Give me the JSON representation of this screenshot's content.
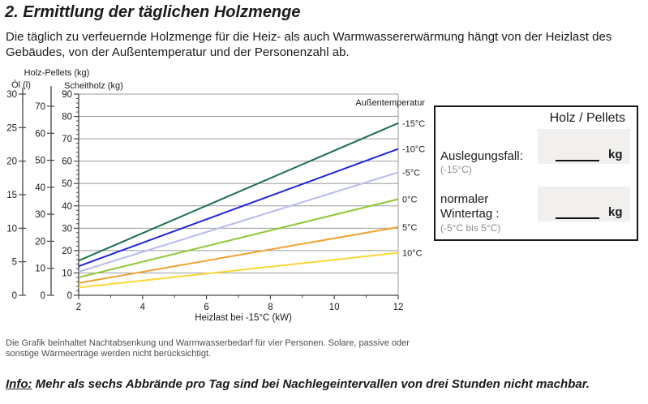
{
  "doc": {
    "title": "2. Ermittlung der täglichen Holzmenge",
    "intro": "Die täglich zu verfeuernde Holzmenge für die Heiz- als auch Warmwassererwärmung hängt von der Heizlast des Gebäudes, von der Außentemperatur und der Personenzahl ab.",
    "footnote": "Die Grafik beinhaltet Nachtabsenkung und Warmwasserbedarf für vier Personen. Solare, passive oder sonstige Wärmeerträge werden nicht berücksichtigt.",
    "info_label": "Info:",
    "info_text": "Mehr als sechs Abbrände pro Tag sind bei Nachlegeintervallen von drei Stunden nicht machbar."
  },
  "worksheet": {
    "header": "Holz / Pellets",
    "rows": [
      {
        "label_line1": "Auslegungsfall:",
        "label_line2": "",
        "sublabel": "(-15°C)",
        "value": "",
        "unit": "kg"
      },
      {
        "label_line1": "normaler",
        "label_line2": "Wintertag :",
        "sublabel": "(-5°C bis 5°C)",
        "value": "",
        "unit": "kg"
      }
    ]
  },
  "chart_data": {
    "type": "line",
    "xlabel": "Heizlast bei -15°C (kW)",
    "xlim": [
      2,
      12
    ],
    "x_major_ticks": [
      2,
      4,
      6,
      8,
      10,
      12
    ],
    "x_minor_ticks": [
      3,
      5,
      7,
      9,
      11
    ],
    "value_axes": [
      {
        "id": "oel",
        "label": "Öl (l)",
        "min": 0,
        "max": 30,
        "step": 5,
        "tick_labels": [
          0,
          5,
          10,
          15,
          20,
          25,
          30
        ]
      },
      {
        "id": "pellets",
        "label": "Holz-Pellets (kg)",
        "min": 0,
        "max": 70,
        "step": 10,
        "tick_labels": [
          0,
          10,
          20,
          30,
          40,
          50,
          60,
          70
        ]
      },
      {
        "id": "scheitholz",
        "label": "Scheitholz (kg)",
        "min": 0,
        "max": 90,
        "step": 10,
        "tick_labels": [
          0,
          10,
          20,
          30,
          40,
          50,
          60,
          70,
          80,
          90
        ]
      }
    ],
    "grid": true,
    "gridline_values_scheitholz_kg": [
      10,
      20,
      30,
      40,
      50,
      60,
      70,
      80
    ],
    "legend_title": "Außentemperatur",
    "legend_position": "right",
    "series": [
      {
        "name": "-15°C",
        "color": "#1e6e55",
        "points_scheitholz_kg": [
          [
            2,
            15.5
          ],
          [
            12,
            77
          ]
        ]
      },
      {
        "name": "-10°C",
        "color": "#2226d6",
        "points_scheitholz_kg": [
          [
            2,
            13
          ],
          [
            12,
            65.5
          ]
        ]
      },
      {
        "name": "-5°C",
        "color": "#b8baee",
        "points_scheitholz_kg": [
          [
            2,
            10.5
          ],
          [
            12,
            55
          ]
        ]
      },
      {
        "name": "0°C",
        "color": "#8fc733",
        "points_scheitholz_kg": [
          [
            2,
            8
          ],
          [
            12,
            43
          ]
        ]
      },
      {
        "name": "5°C",
        "color": "#f0a232",
        "points_scheitholz_kg": [
          [
            2,
            5.5
          ],
          [
            12,
            30.5
          ]
        ]
      },
      {
        "name": "10°C",
        "color": "#fcd735",
        "points_scheitholz_kg": [
          [
            2,
            3.5
          ],
          [
            12,
            19
          ]
        ]
      }
    ]
  }
}
